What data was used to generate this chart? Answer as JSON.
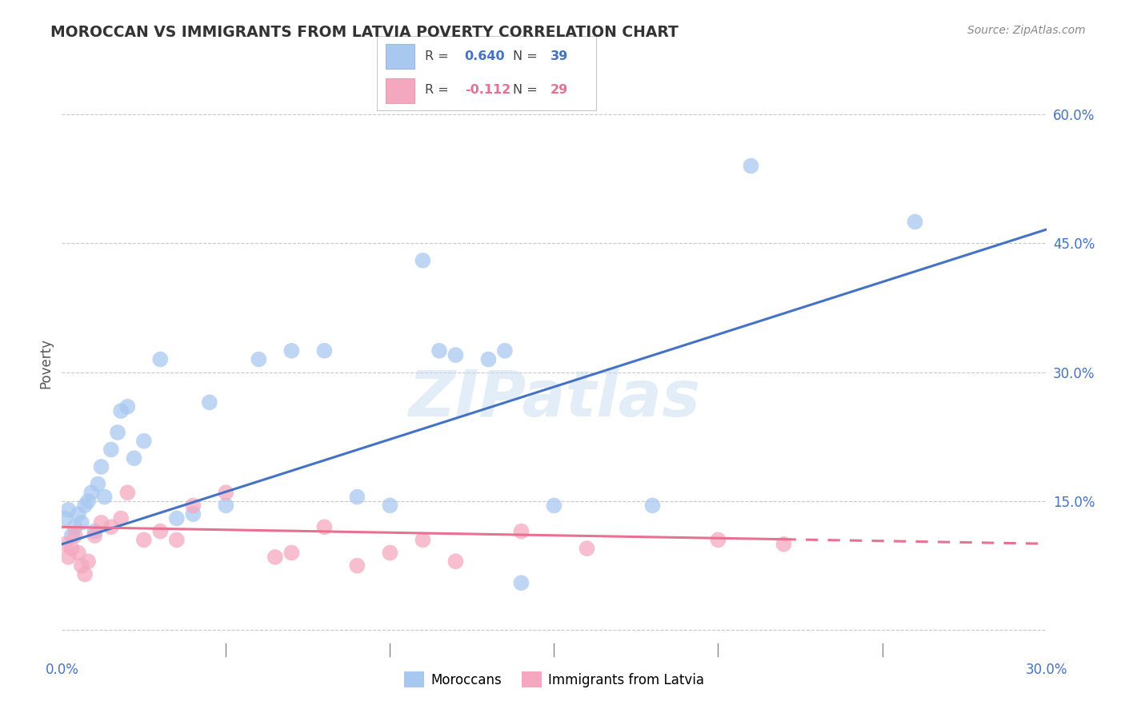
{
  "title": "MOROCCAN VS IMMIGRANTS FROM LATVIA POVERTY CORRELATION CHART",
  "source": "Source: ZipAtlas.com",
  "ylabel": "Poverty",
  "ytick_values": [
    0.0,
    15.0,
    30.0,
    45.0,
    60.0
  ],
  "xlim": [
    0.0,
    30.0
  ],
  "ylim": [
    -3.0,
    65.0
  ],
  "blue_color": "#A8C8F0",
  "pink_color": "#F4A8C0",
  "blue_line_color": "#4472C4",
  "pink_line_color": "#E87090",
  "watermark": "ZIPatlas",
  "moroccan_x": [
    0.1,
    0.2,
    0.3,
    0.4,
    0.5,
    0.6,
    0.7,
    0.8,
    0.9,
    1.0,
    1.1,
    1.2,
    1.3,
    1.5,
    1.7,
    1.8,
    2.0,
    2.2,
    2.5,
    3.0,
    3.5,
    4.0,
    4.5,
    5.0,
    6.0,
    7.0,
    8.0,
    9.0,
    10.0,
    11.0,
    12.0,
    13.0,
    14.0,
    15.0,
    18.0,
    21.0,
    26.0,
    11.5,
    13.5
  ],
  "moroccan_y": [
    13.0,
    14.0,
    11.0,
    12.0,
    13.5,
    12.5,
    14.5,
    15.0,
    16.0,
    11.5,
    17.0,
    19.0,
    15.5,
    21.0,
    23.0,
    25.5,
    26.0,
    20.0,
    22.0,
    31.5,
    13.0,
    13.5,
    26.5,
    14.5,
    31.5,
    32.5,
    32.5,
    15.5,
    14.5,
    43.0,
    32.0,
    31.5,
    5.5,
    14.5,
    14.5,
    54.0,
    47.5,
    32.5,
    32.5
  ],
  "latvia_x": [
    0.1,
    0.2,
    0.3,
    0.4,
    0.5,
    0.6,
    0.7,
    0.8,
    1.0,
    1.2,
    1.5,
    1.8,
    2.0,
    2.5,
    3.0,
    4.0,
    5.0,
    6.5,
    7.0,
    8.0,
    10.0,
    11.0,
    12.0,
    14.0,
    16.0,
    20.0,
    22.0,
    3.5,
    9.0
  ],
  "latvia_y": [
    10.0,
    8.5,
    9.5,
    11.0,
    9.0,
    7.5,
    6.5,
    8.0,
    11.0,
    12.5,
    12.0,
    13.0,
    16.0,
    10.5,
    11.5,
    14.5,
    16.0,
    8.5,
    9.0,
    12.0,
    9.0,
    10.5,
    8.0,
    11.5,
    9.5,
    10.5,
    10.0,
    10.5,
    7.5
  ]
}
